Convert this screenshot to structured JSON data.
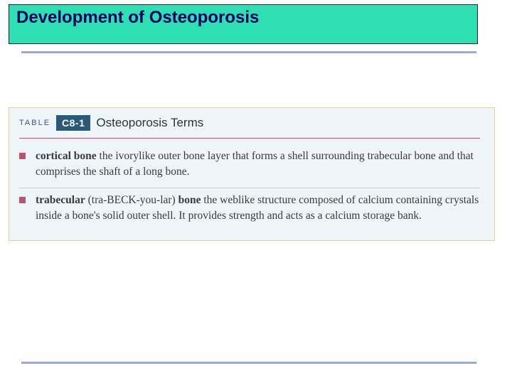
{
  "title": "Development of Osteoporosis",
  "colors": {
    "title_bg": "#2de0b4",
    "title_text": "#000060",
    "rule": "#9ba8d0",
    "box_bg": "#eef5f8",
    "box_border": "#e8d090",
    "badge_bg": "#2a5a7a",
    "bullet": "#c05070",
    "divider": "#c05070",
    "row_divider": "#d8c8d0",
    "body_text": "#3a3a3a",
    "label_text": "#3a5a7a"
  },
  "table": {
    "label": "TABLE",
    "badge": "C8-1",
    "title": "Osteoporosis Terms",
    "terms": [
      {
        "name": "cortical bone",
        "def": " the ivorylike outer bone layer that forms a shell surrounding trabecular bone and that comprises the shaft of a long bone."
      },
      {
        "name": "trabecular",
        "pron": " (tra-BECK-you-lar) ",
        "name2": "bone",
        "def": " the weblike structure composed of calcium containing crystals inside a bone's solid outer shell. It provides strength and acts as a calcium storage bank."
      }
    ]
  }
}
